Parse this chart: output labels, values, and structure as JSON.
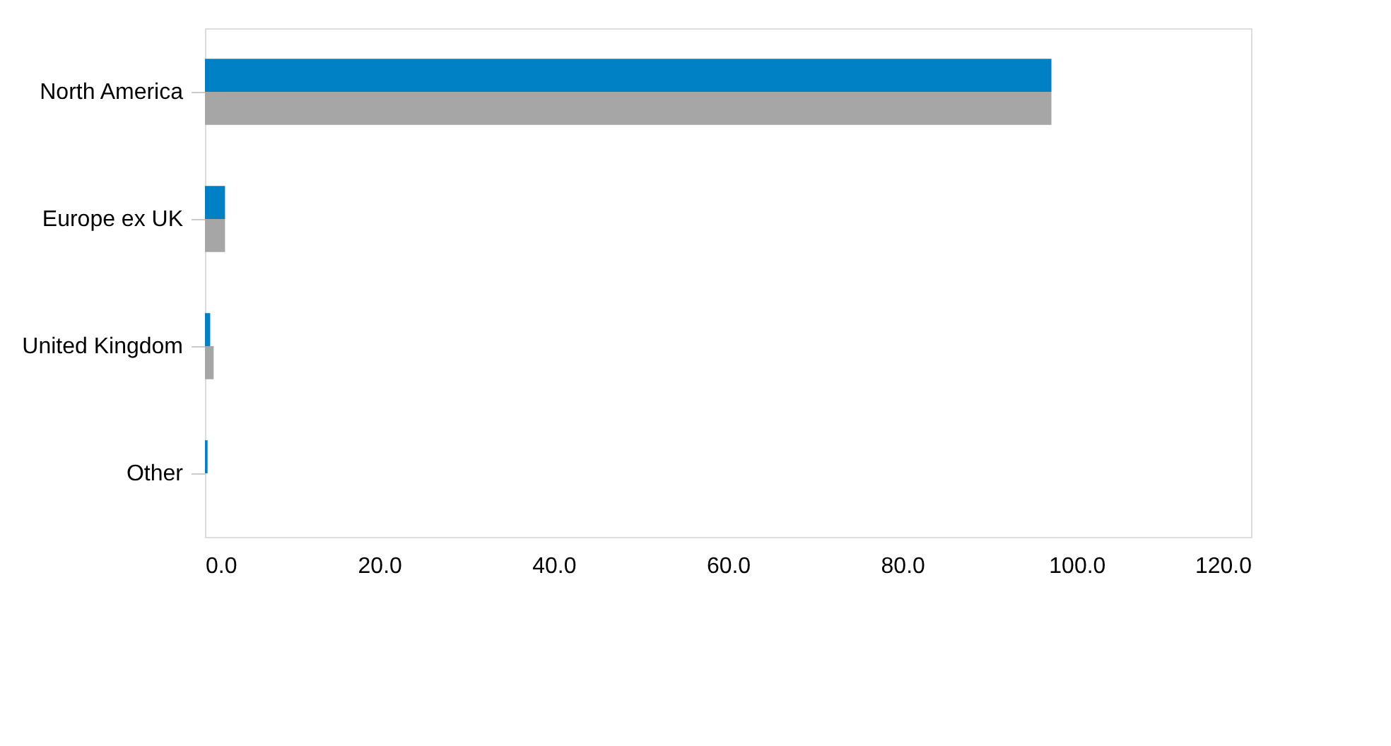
{
  "chart_data": {
    "type": "bar",
    "orientation": "horizontal",
    "categories": [
      "North America",
      "Europe ex UK",
      "United Kingdom",
      "Other"
    ],
    "series": [
      {
        "color": "#0081c6",
        "values": [
          97.1,
          2.3,
          0.6,
          0.3
        ]
      },
      {
        "color": "#a6a6a6",
        "values": [
          97.1,
          2.3,
          1.0,
          0.0
        ]
      }
    ],
    "xlim": [
      0,
      120
    ],
    "xticks": [
      {
        "value": 0,
        "label": "0.0"
      },
      {
        "value": 20,
        "label": "20.0"
      },
      {
        "value": 40,
        "label": "40.0"
      },
      {
        "value": 60,
        "label": "60.0"
      },
      {
        "value": 80,
        "label": "80.0"
      },
      {
        "value": 100,
        "label": "100.0"
      },
      {
        "value": 120,
        "label": "120.0"
      }
    ],
    "grid": false,
    "legend": false
  }
}
